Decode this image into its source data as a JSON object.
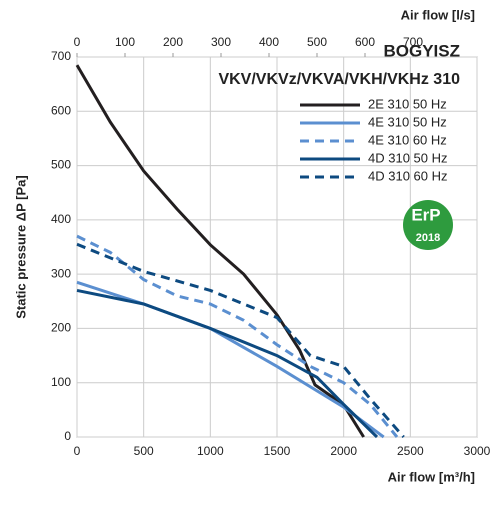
{
  "chart_data": {
    "type": "line",
    "title": "VKV/VKVz/VKVA/VKH/VKHz 310",
    "y_label": "Static pressure ΔP [Pa]",
    "x_label": "Air flow [m³/h]",
    "x2_label": "Air flow [l/s]",
    "xlim": [
      0,
      3000
    ],
    "xticks": [
      0,
      500,
      1000,
      1500,
      2000,
      2500,
      3000
    ],
    "x2lim": [
      0,
      833.3
    ],
    "x2ticks": [
      0,
      100,
      200,
      300,
      400,
      500,
      600,
      700
    ],
    "ylim": [
      0,
      700
    ],
    "yticks": [
      0,
      100,
      200,
      300,
      400,
      500,
      600,
      700
    ],
    "grid": true,
    "series": [
      {
        "name": "2E 310 50 Hz",
        "color": "#231f20",
        "dashed": false,
        "x": [
          0,
          250,
          500,
          750,
          1000,
          1250,
          1500,
          1670,
          1785,
          2000,
          2150
        ],
        "values": [
          685,
          580,
          490,
          420,
          354,
          300,
          225,
          160,
          96,
          59,
          0
        ]
      },
      {
        "name": "4E 310 50 Hz",
        "color": "#5b8fd0",
        "dashed": false,
        "x": [
          0,
          500,
          1000,
          1500,
          2000,
          2300
        ],
        "values": [
          285,
          245,
          200,
          130,
          55,
          0
        ]
      },
      {
        "name": "4E 310 60 Hz",
        "color": "#5b8fd0",
        "dashed": true,
        "x": [
          0,
          250,
          500,
          750,
          1000,
          1250,
          1500,
          1750,
          2000,
          2200,
          2400
        ],
        "values": [
          370,
          340,
          290,
          260,
          245,
          215,
          170,
          130,
          100,
          60,
          0
        ]
      },
      {
        "name": "4D 310 50 Hz",
        "color": "#0d4a80",
        "dashed": false,
        "x": [
          0,
          500,
          1000,
          1500,
          1800,
          2000,
          2250
        ],
        "values": [
          270,
          245,
          200,
          150,
          110,
          60,
          0
        ]
      },
      {
        "name": "4D 310 60 Hz",
        "color": "#0d4a80",
        "dashed": true,
        "x": [
          0,
          500,
          1000,
          1500,
          1750,
          2000,
          2200,
          2450
        ],
        "values": [
          355,
          305,
          270,
          220,
          150,
          130,
          70,
          0
        ]
      }
    ]
  },
  "branding": {
    "logo": "BOGYISZ",
    "badge": "ErP",
    "year": "2018"
  }
}
